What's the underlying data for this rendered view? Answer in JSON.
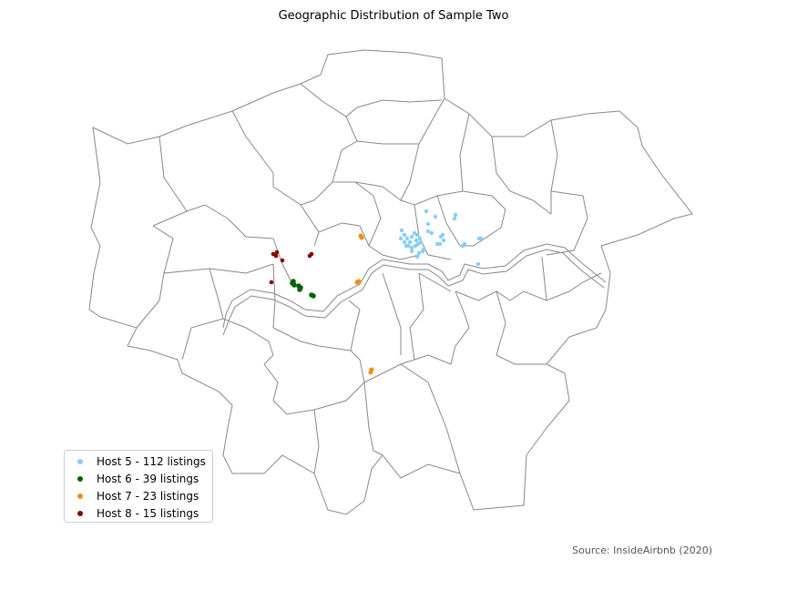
{
  "title": "Geographic Distribution of Sample Two",
  "source": "Source: InsideAirbnb (2020)",
  "legend": [
    {
      "label": "Host 5 - 112 listings",
      "color": "#87cefa",
      "series": "host5"
    },
    {
      "label": "Host 6 - 39 listings",
      "color": "#006400",
      "series": "host6"
    },
    {
      "label": "Host 7 - 23 listings",
      "color": "#ff8c00",
      "series": "host7"
    },
    {
      "label": "Host 8 - 15 listings",
      "color": "#8b0000",
      "series": "host8"
    }
  ],
  "chart_data": {
    "type": "scatter",
    "title": "Geographic Distribution of Sample Two",
    "legend_position": "lower-left",
    "grid": false,
    "series": [
      {
        "name": "Host 5 - 112 listings",
        "color": "#87cefa",
        "count": 112
      },
      {
        "name": "Host 6 - 39 listings",
        "color": "#006400",
        "count": 39
      },
      {
        "name": "Host 7 - 23 listings",
        "color": "#ff8c00",
        "count": 23
      },
      {
        "name": "Host 8 - 15 listings",
        "color": "#8b0000",
        "count": 15
      }
    ]
  }
}
